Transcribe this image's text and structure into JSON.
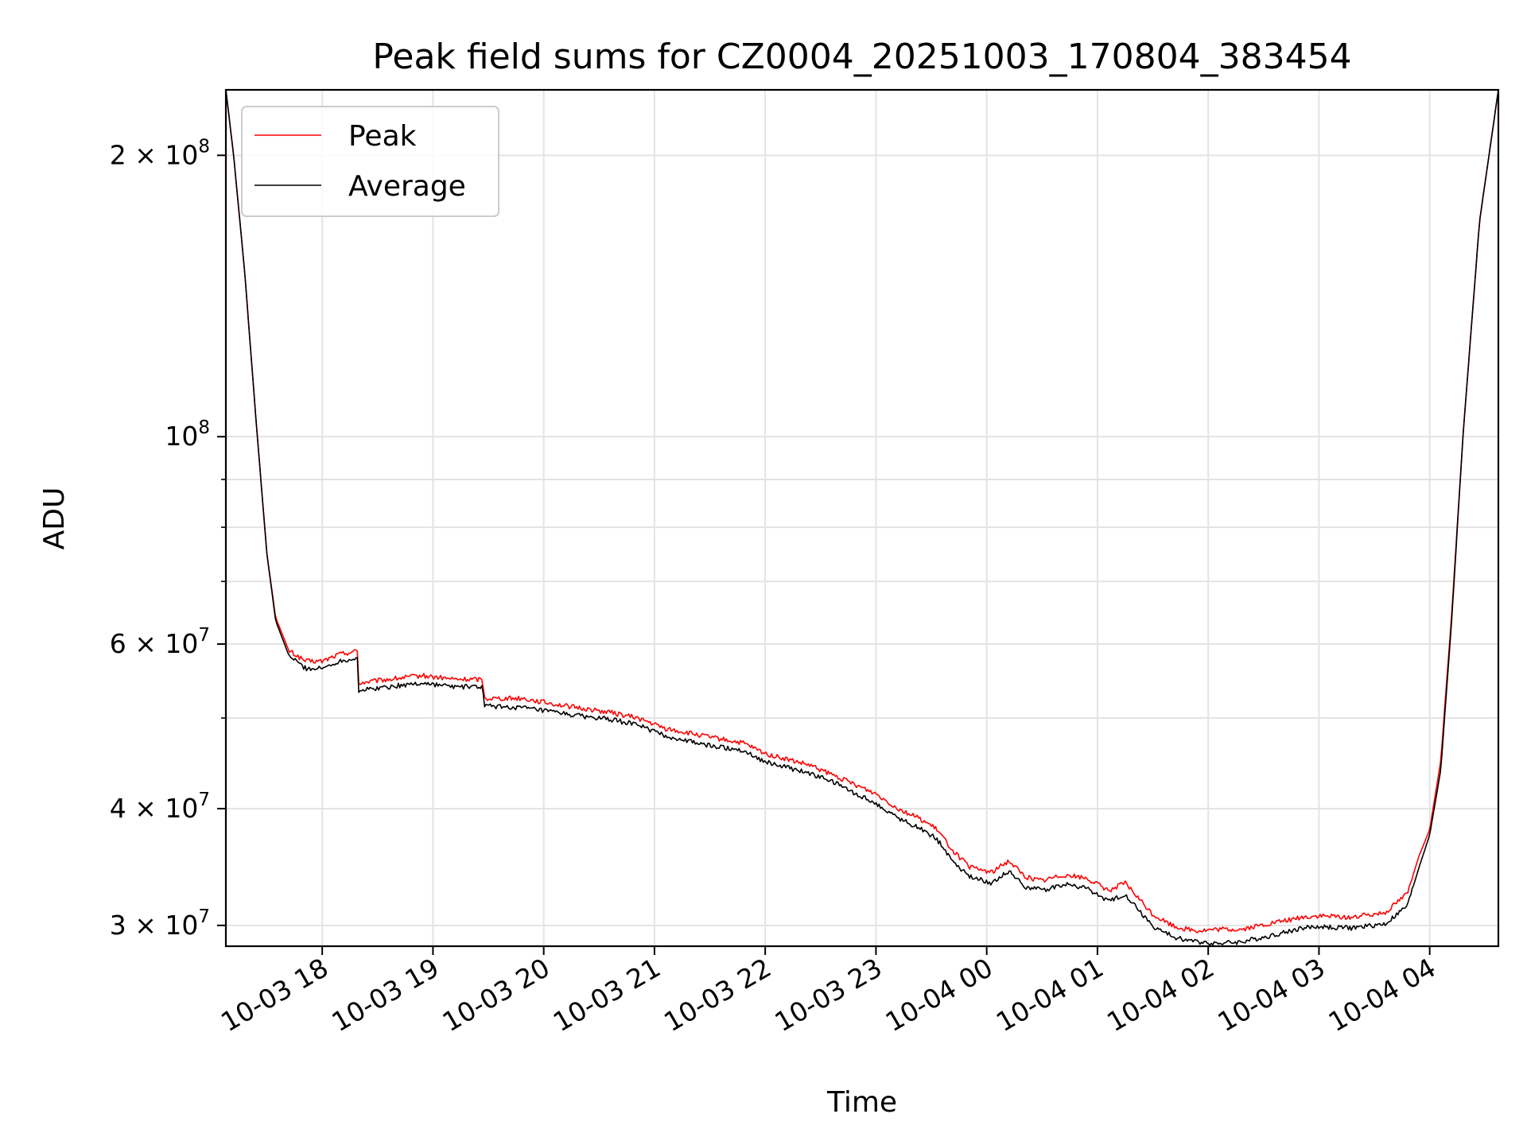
{
  "chart_data": {
    "type": "line",
    "title": "Peak field sums for CZ0004_20251003_170804_383454",
    "xlabel": "Time",
    "ylabel": "ADU",
    "yscale": "log",
    "ylim": [
      28500000,
      235000000
    ],
    "xlim_hours": [
      17.13,
      28.62
    ],
    "grid": true,
    "legend_position": "upper-left",
    "x_ticks": [
      {
        "hour": 18,
        "label": "10-03 18"
      },
      {
        "hour": 19,
        "label": "10-03 19"
      },
      {
        "hour": 20,
        "label": "10-03 20"
      },
      {
        "hour": 21,
        "label": "10-03 21"
      },
      {
        "hour": 22,
        "label": "10-03 22"
      },
      {
        "hour": 23,
        "label": "10-03 23"
      },
      {
        "hour": 24,
        "label": "10-04 00"
      },
      {
        "hour": 25,
        "label": "10-04 01"
      },
      {
        "hour": 26,
        "label": "10-04 02"
      },
      {
        "hour": 27,
        "label": "10-04 03"
      },
      {
        "hour": 28,
        "label": "10-04 04"
      }
    ],
    "y_ticks": [
      {
        "value": 30000000,
        "mant": "3",
        "exp": "7"
      },
      {
        "value": 40000000,
        "mant": "4",
        "exp": "7"
      },
      {
        "value": 60000000,
        "mant": "6",
        "exp": "7"
      },
      {
        "value": 100000000,
        "mant": "",
        "exp": "8"
      },
      {
        "value": 200000000,
        "mant": "2",
        "exp": "8"
      }
    ],
    "y_minor_ticks": [
      50000000,
      70000000,
      80000000,
      90000000
    ],
    "series": [
      {
        "name": "Peak",
        "color": "#ff0000",
        "points": [
          [
            17.13,
            235000000
          ],
          [
            17.2,
            200000000
          ],
          [
            17.3,
            150000000
          ],
          [
            17.4,
            105000000
          ],
          [
            17.5,
            75000000
          ],
          [
            17.58,
            64000000
          ],
          [
            17.7,
            59000000
          ],
          [
            17.85,
            57500000
          ],
          [
            18.0,
            57500000
          ],
          [
            18.15,
            58500000
          ],
          [
            18.32,
            59000000
          ],
          [
            18.33,
            54500000
          ],
          [
            18.6,
            55000000
          ],
          [
            18.9,
            55500000
          ],
          [
            19.2,
            55000000
          ],
          [
            19.45,
            55000000
          ],
          [
            19.46,
            52500000
          ],
          [
            19.8,
            52500000
          ],
          [
            20.2,
            51500000
          ],
          [
            20.6,
            50700000
          ],
          [
            20.85,
            50000000
          ],
          [
            21.1,
            48700000
          ],
          [
            21.5,
            47700000
          ],
          [
            21.8,
            47000000
          ],
          [
            22.0,
            45800000
          ],
          [
            22.4,
            44500000
          ],
          [
            22.6,
            43500000
          ],
          [
            22.8,
            42500000
          ],
          [
            23.0,
            41500000
          ],
          [
            23.2,
            40000000
          ],
          [
            23.4,
            39000000
          ],
          [
            23.55,
            38000000
          ],
          [
            23.7,
            36000000
          ],
          [
            23.85,
            34600000
          ],
          [
            24.05,
            34200000
          ],
          [
            24.2,
            35200000
          ],
          [
            24.35,
            33800000
          ],
          [
            24.5,
            33500000
          ],
          [
            24.7,
            34000000
          ],
          [
            24.9,
            33700000
          ],
          [
            25.1,
            32700000
          ],
          [
            25.25,
            33300000
          ],
          [
            25.5,
            30800000
          ],
          [
            25.7,
            29900000
          ],
          [
            25.9,
            29600000
          ],
          [
            26.1,
            29700000
          ],
          [
            26.3,
            29700000
          ],
          [
            26.6,
            30200000
          ],
          [
            26.85,
            30600000
          ],
          [
            27.0,
            30700000
          ],
          [
            27.3,
            30600000
          ],
          [
            27.6,
            31000000
          ],
          [
            27.8,
            32500000
          ],
          [
            27.9,
            35500000
          ],
          [
            28.0,
            38000000
          ],
          [
            28.1,
            45000000
          ],
          [
            28.2,
            65000000
          ],
          [
            28.3,
            100000000
          ],
          [
            28.45,
            170000000
          ],
          [
            28.62,
            235000000
          ]
        ]
      },
      {
        "name": "Average",
        "color": "#000000",
        "points": [
          [
            17.13,
            235000000
          ],
          [
            17.2,
            200000000
          ],
          [
            17.3,
            150000000
          ],
          [
            17.4,
            105000000
          ],
          [
            17.5,
            75000000
          ],
          [
            17.58,
            63500000
          ],
          [
            17.7,
            58300000
          ],
          [
            17.85,
            56500000
          ],
          [
            18.0,
            56500000
          ],
          [
            18.15,
            57500000
          ],
          [
            18.32,
            58000000
          ],
          [
            18.33,
            53500000
          ],
          [
            18.6,
            54000000
          ],
          [
            18.9,
            54500000
          ],
          [
            19.2,
            54000000
          ],
          [
            19.45,
            54000000
          ],
          [
            19.46,
            51500000
          ],
          [
            19.8,
            51300000
          ],
          [
            20.2,
            50500000
          ],
          [
            20.6,
            49800000
          ],
          [
            20.85,
            49200000
          ],
          [
            21.1,
            47800000
          ],
          [
            21.5,
            46700000
          ],
          [
            21.8,
            46200000
          ],
          [
            22.0,
            44900000
          ],
          [
            22.4,
            43600000
          ],
          [
            22.6,
            42800000
          ],
          [
            22.8,
            41600000
          ],
          [
            23.0,
            40500000
          ],
          [
            23.2,
            39100000
          ],
          [
            23.4,
            38100000
          ],
          [
            23.55,
            37100000
          ],
          [
            23.7,
            35100000
          ],
          [
            23.85,
            33800000
          ],
          [
            24.05,
            33300000
          ],
          [
            24.2,
            34300000
          ],
          [
            24.35,
            33000000
          ],
          [
            24.5,
            32700000
          ],
          [
            24.7,
            33200000
          ],
          [
            24.9,
            32900000
          ],
          [
            25.1,
            31800000
          ],
          [
            25.25,
            32400000
          ],
          [
            25.5,
            29900000
          ],
          [
            25.7,
            29100000
          ],
          [
            25.9,
            28800000
          ],
          [
            26.1,
            28700000
          ],
          [
            26.3,
            28800000
          ],
          [
            26.6,
            29300000
          ],
          [
            26.85,
            29800000
          ],
          [
            27.0,
            29900000
          ],
          [
            27.3,
            29800000
          ],
          [
            27.6,
            30100000
          ],
          [
            27.8,
            31500000
          ],
          [
            27.9,
            34500000
          ],
          [
            28.0,
            37500000
          ],
          [
            28.1,
            44000000
          ],
          [
            28.2,
            64000000
          ],
          [
            28.3,
            100000000
          ],
          [
            28.45,
            170000000
          ],
          [
            28.62,
            235000000
          ]
        ]
      }
    ]
  }
}
